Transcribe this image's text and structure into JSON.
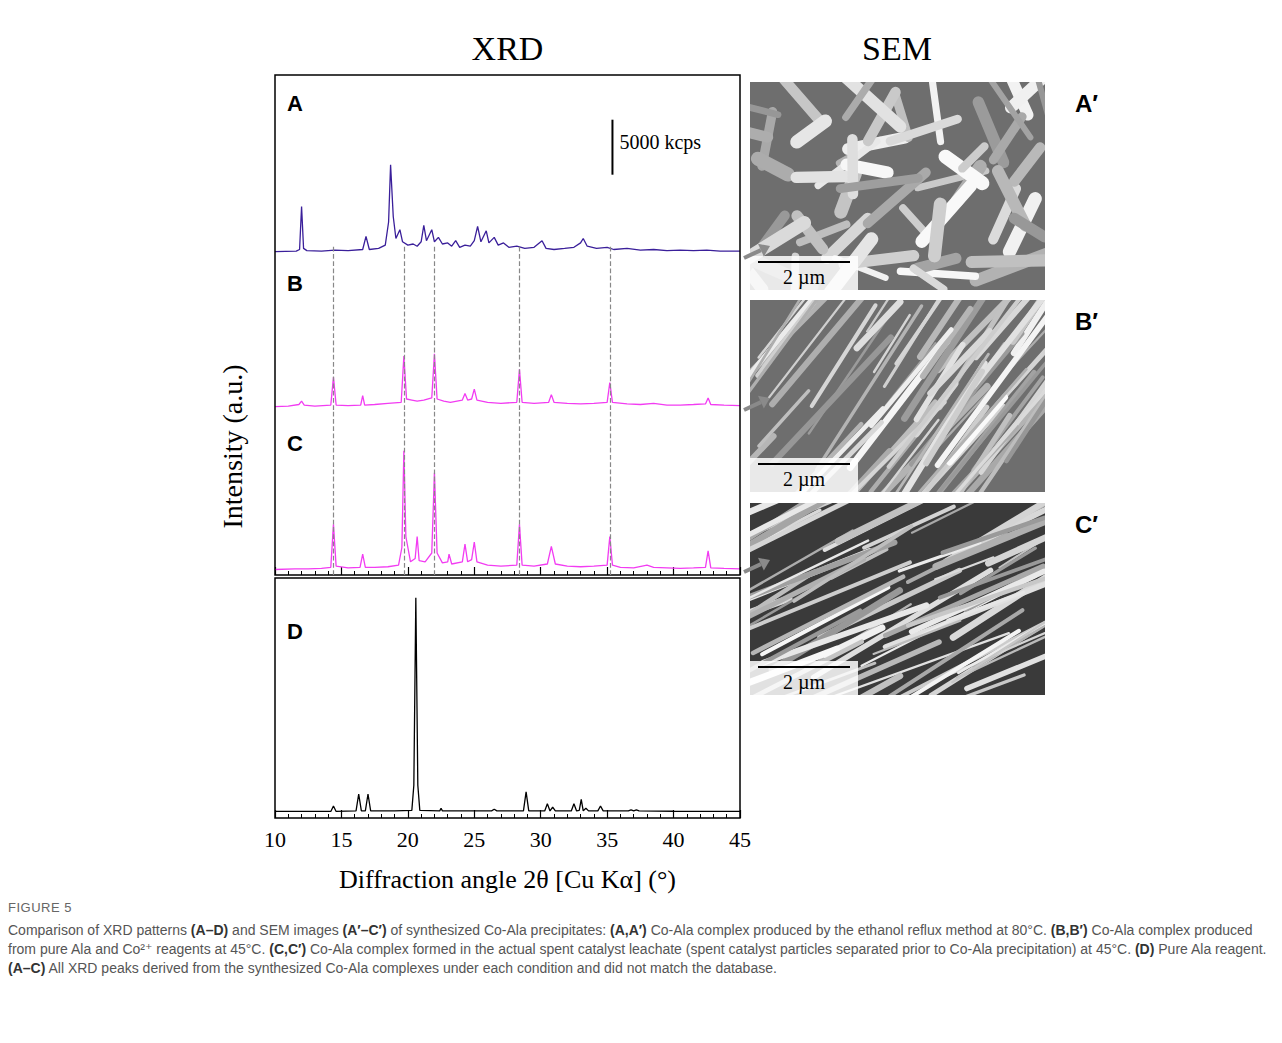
{
  "headers": {
    "left": "XRD",
    "right": "SEM"
  },
  "chart_data": {
    "type": "line",
    "x_label": "Diffraction angle 2θ [Cu Kα] (°)",
    "y_label": "Intensity (a.u.)",
    "xlim": [
      10,
      45
    ],
    "xticks": [
      10,
      15,
      20,
      25,
      30,
      35,
      40,
      45
    ],
    "tick_labels": "x",
    "grid": false,
    "series": [
      {
        "name": "A",
        "color": "#3a1f9a",
        "ylim": [
          0,
          15000
        ],
        "x": [
          10,
          11.6,
          11.85,
          12,
          12.15,
          12.4,
          13.5,
          14.5,
          15.5,
          16.6,
          16.85,
          17.1,
          17.8,
          18.3,
          18.55,
          18.7,
          18.9,
          19.1,
          19.4,
          19.6,
          20,
          20.4,
          20.7,
          21,
          21.2,
          21.4,
          21.8,
          22,
          22.3,
          22.6,
          23,
          23.3,
          23.6,
          23.9,
          24.3,
          24.7,
          25,
          25.25,
          25.5,
          25.9,
          26.1,
          26.5,
          26.8,
          27.2,
          27.6,
          28.2,
          28.8,
          29.5,
          30.1,
          30.4,
          31,
          31.8,
          32.5,
          33,
          33.2,
          33.5,
          34.2,
          35,
          35.5,
          36.5,
          37.5,
          38.5,
          39.5,
          40.5,
          41.5,
          42.5,
          43.5,
          45
        ],
        "values": [
          300,
          350,
          500,
          4400,
          600,
          400,
          350,
          450,
          400,
          500,
          1700,
          500,
          600,
          900,
          3000,
          8200,
          3500,
          1500,
          2300,
          1200,
          900,
          1000,
          800,
          1200,
          2700,
          1300,
          2300,
          1200,
          1600,
          1000,
          1100,
          800,
          1300,
          700,
          900,
          800,
          1300,
          2600,
          1200,
          2200,
          1100,
          1600,
          900,
          1100,
          700,
          800,
          600,
          700,
          1300,
          600,
          500,
          600,
          700,
          1100,
          1500,
          800,
          600,
          700,
          500,
          600,
          450,
          500,
          400,
          450,
          400,
          450,
          350,
          350
        ]
      },
      {
        "name": "B",
        "color": "#f23cf2",
        "ylim": [
          0,
          15000
        ],
        "x": [
          10,
          11,
          11.8,
          12,
          12.2,
          13,
          14.2,
          14.4,
          14.6,
          15.5,
          16.45,
          16.6,
          16.75,
          17.5,
          18.5,
          19.5,
          19.7,
          19.9,
          20.3,
          20.7,
          21.2,
          21.8,
          22,
          22.2,
          22.7,
          23.2,
          24.1,
          24.3,
          24.5,
          24.8,
          25,
          25.2,
          26,
          27,
          28.2,
          28.4,
          28.6,
          29.5,
          30.6,
          30.8,
          31,
          32,
          33,
          34,
          35,
          35.2,
          35.4,
          36.5,
          37.5,
          38.5,
          39.5,
          40.5,
          41.5,
          42.4,
          42.6,
          42.8,
          43.8,
          45
        ],
        "values": [
          300,
          350,
          500,
          800,
          450,
          350,
          450,
          3000,
          450,
          400,
          450,
          1300,
          450,
          500,
          600,
          700,
          4900,
          1000,
          900,
          800,
          900,
          1100,
          5100,
          1000,
          800,
          700,
          900,
          1500,
          900,
          1000,
          1900,
          900,
          700,
          600,
          700,
          3700,
          700,
          600,
          700,
          1400,
          700,
          600,
          550,
          600,
          700,
          2500,
          700,
          550,
          500,
          600,
          450,
          450,
          500,
          550,
          1100,
          500,
          450,
          400
        ]
      },
      {
        "name": "C",
        "color": "#f23cf2",
        "ylim": [
          0,
          15000
        ],
        "x": [
          10,
          11.5,
          12.5,
          13.5,
          14.2,
          14.4,
          14.6,
          15.5,
          16.4,
          16.6,
          16.8,
          17.5,
          18.5,
          19.3,
          19.55,
          19.7,
          19.85,
          20.2,
          20.55,
          20.7,
          20.85,
          21.3,
          21.8,
          22,
          22.2,
          22.6,
          23,
          23.1,
          23.3,
          24.1,
          24.3,
          24.5,
          24.8,
          25,
          25.2,
          26,
          27,
          28.2,
          28.4,
          28.6,
          29.5,
          30.5,
          30.8,
          31.1,
          32,
          33,
          34,
          35,
          35.2,
          35.4,
          36,
          37,
          38,
          38.5,
          39.5,
          40.5,
          41.5,
          42.4,
          42.6,
          42.8,
          43.8,
          45
        ],
        "values": [
          500,
          550,
          550,
          600,
          700,
          4600,
          800,
          650,
          700,
          1900,
          700,
          700,
          750,
          900,
          2500,
          11300,
          3500,
          1200,
          1500,
          3500,
          1300,
          1200,
          2000,
          9300,
          2000,
          1100,
          1200,
          1900,
          1000,
          1200,
          2800,
          1200,
          1400,
          3000,
          1200,
          900,
          800,
          900,
          4600,
          900,
          800,
          1000,
          2600,
          1000,
          800,
          750,
          800,
          900,
          3500,
          900,
          700,
          650,
          900,
          700,
          650,
          600,
          650,
          700,
          2200,
          650,
          600,
          550
        ]
      },
      {
        "name": "D",
        "color": "#000000",
        "ylim": [
          0,
          22000
        ],
        "x": [
          10,
          12,
          14.2,
          14.4,
          14.6,
          16.1,
          16.3,
          16.5,
          16.8,
          17,
          17.2,
          19,
          20.3,
          20.45,
          20.6,
          20.75,
          20.9,
          22.4,
          22.5,
          22.6,
          26.3,
          26.5,
          26.7,
          28.7,
          28.9,
          29.1,
          30.3,
          30.5,
          30.7,
          30.9,
          31.1,
          32.3,
          32.5,
          32.7,
          32.9,
          33.05,
          33.2,
          33.4,
          33.6,
          34.3,
          34.5,
          34.7,
          36.6,
          36.8,
          37,
          37.2,
          37.4,
          40,
          45
        ],
        "values": [
          600,
          600,
          600,
          1100,
          600,
          650,
          2200,
          650,
          650,
          2200,
          650,
          650,
          700,
          3000,
          20200,
          3000,
          700,
          650,
          900,
          650,
          650,
          800,
          650,
          650,
          2400,
          650,
          650,
          1300,
          650,
          1000,
          650,
          650,
          1300,
          650,
          700,
          1700,
          650,
          900,
          650,
          650,
          1100,
          650,
          650,
          750,
          650,
          750,
          650,
          620,
          600
        ]
      }
    ],
    "reference_lines": {
      "panels": [
        "B",
        "C"
      ],
      "x": [
        14.4,
        19.7,
        22.0,
        28.4,
        35.2
      ]
    },
    "scale_bar": {
      "panel": "A",
      "label": "5000 kcps",
      "value": 5000,
      "x": 35.4,
      "y": 7300
    }
  },
  "sem_images": [
    {
      "label": "A′",
      "scale_bar": "2 µm"
    },
    {
      "label": "B′",
      "scale_bar": "2 µm"
    },
    {
      "label": "C′",
      "scale_bar": "2 µm"
    }
  ],
  "caption": {
    "title": "FIGURE 5",
    "segments": [
      {
        "text": "Comparison of XRD patterns ",
        "bold": false
      },
      {
        "text": "(A–D)",
        "bold": true
      },
      {
        "text": " and SEM images ",
        "bold": false
      },
      {
        "text": "(A′–C′)",
        "bold": true
      },
      {
        "text": " of synthesized Co-Ala precipitates: ",
        "bold": false
      },
      {
        "text": "(A,A′)",
        "bold": true
      },
      {
        "text": " Co-Ala complex produced by the ethanol reflux method at 80°C. ",
        "bold": false
      },
      {
        "text": "(B,B′)",
        "bold": true
      },
      {
        "text": " Co-Ala complex produced from pure Ala and Co²⁺ reagents at 45°C. ",
        "bold": false
      },
      {
        "text": "(C,C′)",
        "bold": true
      },
      {
        "text": " Co-Ala complex formed in the actual spent catalyst leachate (spent catalyst particles separated prior to Co-Ala precipitation) at 45°C. ",
        "bold": false
      },
      {
        "text": "(D)",
        "bold": true
      },
      {
        "text": " Pure Ala reagent. ",
        "bold": false
      },
      {
        "text": "(A–C)",
        "bold": true
      },
      {
        "text": " All XRD peaks derived from the synthesized Co-Ala complexes under each condition and did not match the database.",
        "bold": false
      }
    ]
  }
}
